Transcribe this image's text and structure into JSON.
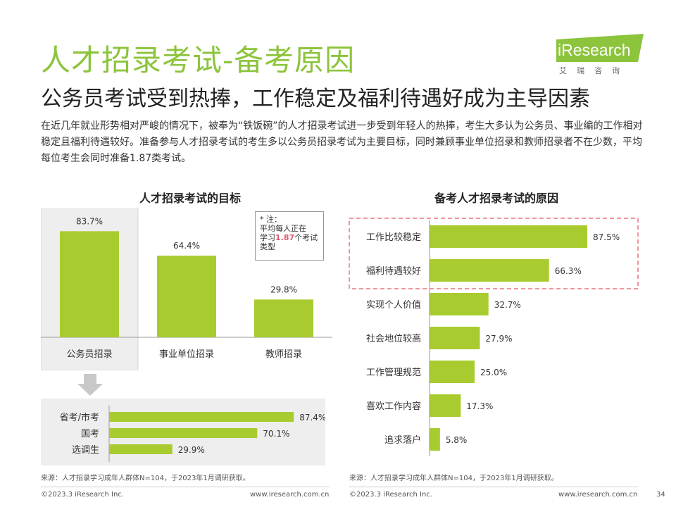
{
  "header": {
    "title": "人才招录考试-备考原因",
    "subtitle": "公务员考试受到热捧，工作稳定及福利待遇好成为主导因素",
    "intro": "在近几年就业形势相对严峻的情况下，被奉为“铁饭碗”的人才招录考试进一步受到年轻人的热捧，考生大多认为公务员、事业编的工作相对稳定且福利待遇较好。准备参与人才招录考试的考生多以公务员招录考试为主要目标，同时兼顾事业单位招录和教师招录者不在少数，平均每位考生会同时准备1.87类考试。"
  },
  "logo": {
    "text": "iResearch",
    "sub": "艾瑞咨询"
  },
  "note": {
    "line1": "* 注：",
    "line2": "平均每人正在",
    "line3a": "学习",
    "highlight": "1.87",
    "line3b": "个考试",
    "line4": "类型"
  },
  "colors": {
    "bar": "#a8cc30",
    "accent": "#8cc43c",
    "dash": "#e8747f",
    "highlight_bg": "#eeeeee"
  },
  "chart_data": [
    {
      "type": "bar",
      "title": "人才招录考试的目标",
      "categories": [
        "公务员招录",
        "事业单位招录",
        "教师招录"
      ],
      "values": [
        83.7,
        64.4,
        29.8
      ],
      "labels": [
        "83.7%",
        "64.4%",
        "29.8%"
      ],
      "ylim": [
        0,
        100
      ]
    },
    {
      "type": "bar",
      "orientation": "horizontal",
      "categories": [
        "省考/市考",
        "国考",
        "选调生"
      ],
      "values": [
        87.4,
        70.1,
        29.9
      ],
      "labels": [
        "87.4%",
        "70.1%",
        "29.9%"
      ],
      "xlim": [
        0,
        100
      ]
    },
    {
      "type": "bar",
      "orientation": "horizontal",
      "title": "备考人才招录考试的原因",
      "categories": [
        "工作比较稳定",
        "福利待遇较好",
        "实现个人价值",
        "社会地位较高",
        "工作管理规范",
        "喜欢工作内容",
        "追求落户"
      ],
      "values": [
        87.5,
        66.3,
        32.7,
        27.9,
        25.0,
        17.3,
        5.8
      ],
      "labels": [
        "87.5%",
        "66.3%",
        "32.7%",
        "27.9%",
        "25.0%",
        "17.3%",
        "5.8%"
      ],
      "xlim": [
        0,
        100
      ]
    }
  ],
  "sources": {
    "left": "来源：人才招录学习成年人群体N=104，于2023年1月调研获取。",
    "right": "来源：人才招录学习成年人群体N=104，于2023年1月调研获取。"
  },
  "footer": {
    "copyright_left": "©2023.3 iResearch Inc.",
    "url_left": "www.iresearch.com.cn",
    "copyright_right": "©2023.3 iResearch Inc.",
    "url_right": "www.iresearch.com.cn",
    "page": "34"
  }
}
